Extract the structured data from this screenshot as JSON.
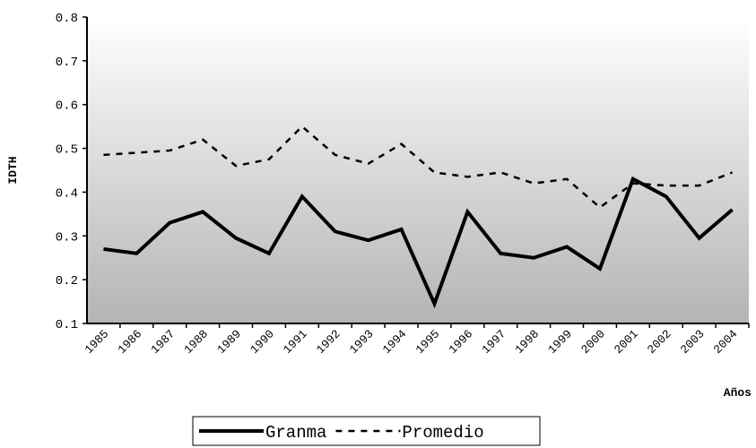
{
  "chart_data": {
    "type": "line",
    "y_label": "IDTH",
    "x_label": "Años",
    "categories": [
      "1985",
      "1986",
      "1987",
      "1988",
      "1989",
      "1990",
      "1991",
      "1992",
      "1993",
      "1994",
      "1995",
      "1996",
      "1997",
      "1998",
      "1999",
      "2000",
      "2001",
      "2002",
      "2003",
      "2004"
    ],
    "series": [
      {
        "name": "Granma",
        "color": "#000000",
        "line_style": "solid",
        "values": [
          0.27,
          0.26,
          0.33,
          0.355,
          0.295,
          0.26,
          0.39,
          0.31,
          0.29,
          0.315,
          0.145,
          0.355,
          0.26,
          0.25,
          0.275,
          0.225,
          0.43,
          0.39,
          0.295,
          0.36
        ]
      },
      {
        "name": "Promedio",
        "color": "#000000",
        "line_style": "dashed",
        "values": [
          0.485,
          0.49,
          0.495,
          0.52,
          0.46,
          0.475,
          0.55,
          0.485,
          0.465,
          0.51,
          0.445,
          0.435,
          0.445,
          0.42,
          0.43,
          0.365,
          0.42,
          0.415,
          0.415,
          0.445
        ]
      }
    ],
    "ylim": [
      0.1,
      0.8
    ],
    "yticks": [
      0.1,
      0.2,
      0.3,
      0.4,
      0.5,
      0.6,
      0.7,
      0.8
    ],
    "legend": "bottom"
  }
}
